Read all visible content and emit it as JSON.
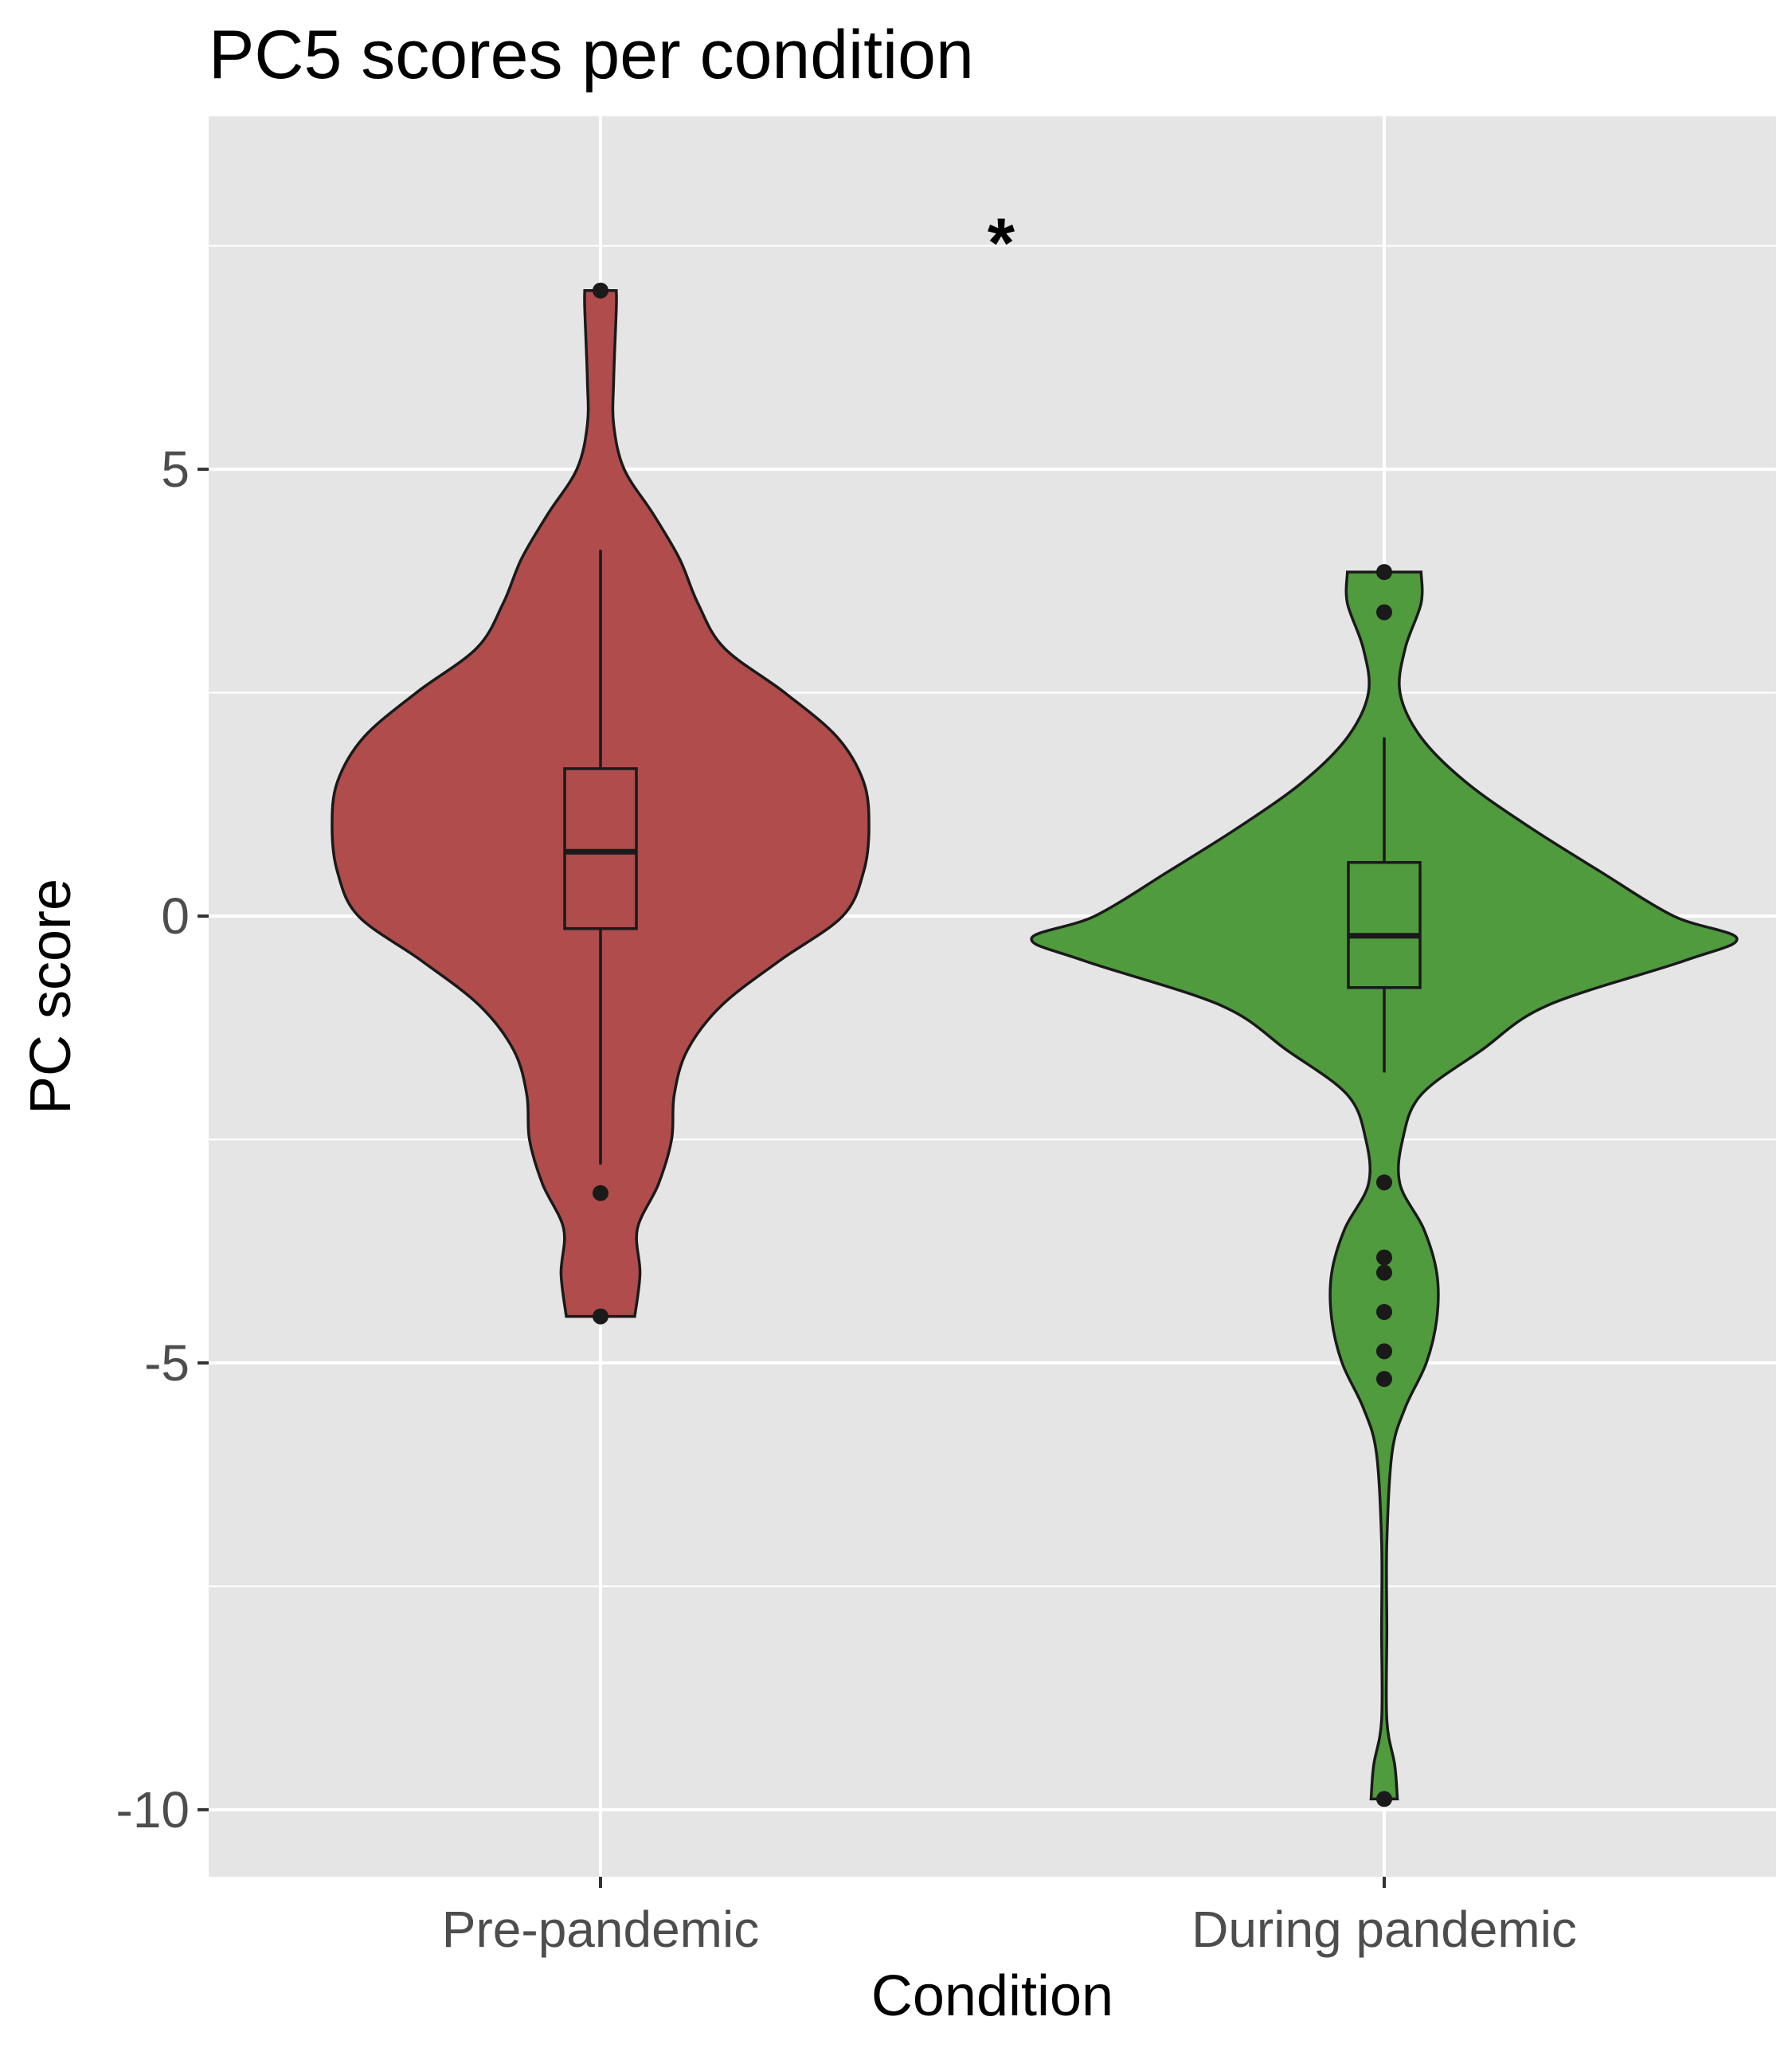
{
  "chart_data": {
    "type": "violin",
    "title": "PC5 scores per condition",
    "xlabel": "Condition",
    "ylabel": "PC score",
    "ylim": [
      -10.75,
      8.95
    ],
    "y_ticks": [
      5,
      0,
      -5,
      -10
    ],
    "y_tick_labels": [
      "5",
      "0",
      "-5",
      "-10"
    ],
    "grid": true,
    "categories": [
      "Pre-pandemic",
      "During pandemic"
    ],
    "colors": [
      "#b04c4c",
      "#4f9b3d"
    ],
    "annotation": "*",
    "series": [
      {
        "category": "Pre-pandemic",
        "box": {
          "q1": -0.14,
          "median": 0.72,
          "q3": 1.65,
          "whisker_low": -2.78,
          "whisker_high": 4.1
        },
        "outliers": [
          7.0,
          -3.1,
          -4.48
        ],
        "density": [
          [
            7.0,
            0.06
          ],
          [
            6.8,
            0.06
          ],
          [
            6.0,
            0.05
          ],
          [
            5.5,
            0.05
          ],
          [
            5.0,
            0.09
          ],
          [
            4.5,
            0.2
          ],
          [
            4.0,
            0.3
          ],
          [
            3.5,
            0.37
          ],
          [
            3.0,
            0.47
          ],
          [
            2.5,
            0.7
          ],
          [
            2.0,
            0.9
          ],
          [
            1.5,
            1.0
          ],
          [
            1.0,
            1.02
          ],
          [
            0.5,
            1.0
          ],
          [
            0.0,
            0.92
          ],
          [
            -0.5,
            0.68
          ],
          [
            -1.0,
            0.46
          ],
          [
            -1.5,
            0.33
          ],
          [
            -2.0,
            0.28
          ],
          [
            -2.5,
            0.27
          ],
          [
            -3.0,
            0.22
          ],
          [
            -3.5,
            0.14
          ],
          [
            -4.0,
            0.15
          ],
          [
            -4.48,
            0.13
          ]
        ]
      },
      {
        "category": "During pandemic",
        "box": {
          "q1": -0.8,
          "median": -0.22,
          "q3": 0.6,
          "whisker_low": -1.75,
          "whisker_high": 2.0
        },
        "outliers": [
          3.85,
          3.4,
          -2.98,
          -3.82,
          -3.99,
          -4.43,
          -4.87,
          -5.18,
          -9.88
        ],
        "density": [
          [
            3.85,
            0.14
          ],
          [
            3.5,
            0.14
          ],
          [
            3.0,
            0.08
          ],
          [
            2.5,
            0.06
          ],
          [
            2.0,
            0.14
          ],
          [
            1.5,
            0.31
          ],
          [
            1.0,
            0.55
          ],
          [
            0.5,
            0.82
          ],
          [
            0.0,
            1.1
          ],
          [
            -0.25,
            1.34
          ],
          [
            -0.5,
            1.14
          ],
          [
            -1.0,
            0.62
          ],
          [
            -1.5,
            0.37
          ],
          [
            -2.0,
            0.14
          ],
          [
            -2.5,
            0.07
          ],
          [
            -3.0,
            0.06
          ],
          [
            -3.5,
            0.15
          ],
          [
            -4.0,
            0.2
          ],
          [
            -4.5,
            0.2
          ],
          [
            -5.0,
            0.16
          ],
          [
            -5.5,
            0.08
          ],
          [
            -6.0,
            0.03
          ],
          [
            -7.0,
            0.01
          ],
          [
            -8.0,
            0.01
          ],
          [
            -9.0,
            0.01
          ],
          [
            -9.5,
            0.04
          ],
          [
            -9.88,
            0.05
          ]
        ]
      }
    ]
  }
}
